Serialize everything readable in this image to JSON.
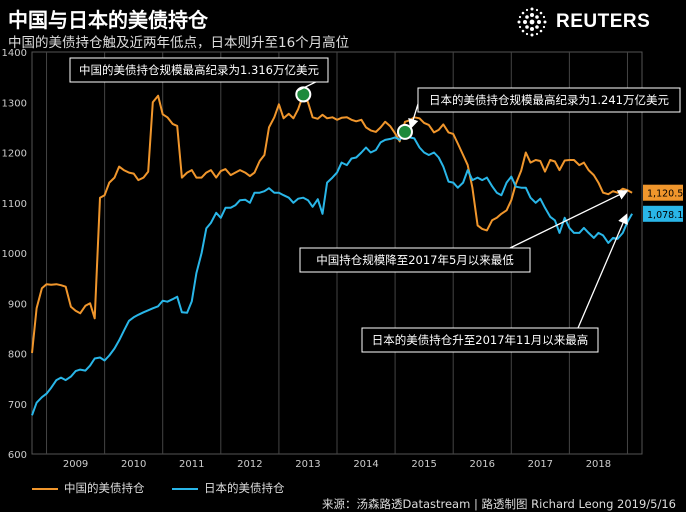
{
  "header": {
    "title": "中国与日本的美债持仓",
    "subtitle": "中国的美债持仓触及近两年低点，日本则升至16个月高位",
    "brand": "REUTERS"
  },
  "legend": {
    "china": "中国的美债持仓",
    "japan": "日本的美债持仓"
  },
  "source": "来源：汤森路透Datastream | 路透制图 Richard Leong 2019/5/16",
  "colors": {
    "china": "#f0962c",
    "japan": "#29b6e8",
    "background": "#000000"
  },
  "chart_data": {
    "type": "line",
    "xlabel": "",
    "ylabel": "",
    "ylim": [
      600,
      1400
    ],
    "yticks": [
      600,
      700,
      800,
      900,
      1000,
      1100,
      1200,
      1300,
      1400
    ],
    "xlim": [
      2008.75,
      2019.25
    ],
    "xticks": [
      {
        "label": "2009",
        "x": 2009
      },
      {
        "label": "2010",
        "x": 2010
      },
      {
        "label": "2011",
        "x": 2011
      },
      {
        "label": "2012",
        "x": 2012
      },
      {
        "label": "2013",
        "x": 2013
      },
      {
        "label": "2014",
        "x": 2014
      },
      {
        "label": "2015",
        "x": 2015
      },
      {
        "label": "2016",
        "x": 2016
      },
      {
        "label": "2017",
        "x": 2017
      },
      {
        "label": "2018",
        "x": 2018
      }
    ],
    "grid": "vertical",
    "series": [
      {
        "name": "中国的美债持仓",
        "color": "#f0962c",
        "end_label": "1,120.5",
        "points": [
          [
            2008.75,
            801
          ],
          [
            2008.83,
            890
          ],
          [
            2008.92,
            930
          ],
          [
            2009.0,
            938
          ],
          [
            2009.08,
            937
          ],
          [
            2009.17,
            938
          ],
          [
            2009.25,
            936
          ],
          [
            2009.33,
            933
          ],
          [
            2009.42,
            893
          ],
          [
            2009.5,
            885
          ],
          [
            2009.58,
            880
          ],
          [
            2009.67,
            895
          ],
          [
            2009.75,
            900
          ],
          [
            2009.83,
            870
          ],
          [
            2009.92,
            1110
          ],
          [
            2010.0,
            1115
          ],
          [
            2010.08,
            1140
          ],
          [
            2010.17,
            1150
          ],
          [
            2010.25,
            1172
          ],
          [
            2010.33,
            1165
          ],
          [
            2010.42,
            1160
          ],
          [
            2010.5,
            1158
          ],
          [
            2010.58,
            1145
          ],
          [
            2010.67,
            1150
          ],
          [
            2010.75,
            1162
          ],
          [
            2010.83,
            1300
          ],
          [
            2010.92,
            1313
          ],
          [
            2011.0,
            1276
          ],
          [
            2011.08,
            1270
          ],
          [
            2011.17,
            1257
          ],
          [
            2011.25,
            1253
          ],
          [
            2011.33,
            1150
          ],
          [
            2011.42,
            1160
          ],
          [
            2011.5,
            1165
          ],
          [
            2011.58,
            1150
          ],
          [
            2011.67,
            1150
          ],
          [
            2011.75,
            1160
          ],
          [
            2011.83,
            1165
          ],
          [
            2011.92,
            1150
          ],
          [
            2012.0,
            1163
          ],
          [
            2012.08,
            1167
          ],
          [
            2012.17,
            1155
          ],
          [
            2012.25,
            1160
          ],
          [
            2012.33,
            1165
          ],
          [
            2012.42,
            1160
          ],
          [
            2012.5,
            1153
          ],
          [
            2012.58,
            1160
          ],
          [
            2012.67,
            1183
          ],
          [
            2012.75,
            1195
          ],
          [
            2012.83,
            1250
          ],
          [
            2012.92,
            1270
          ],
          [
            2013.0,
            1296
          ],
          [
            2013.08,
            1268
          ],
          [
            2013.17,
            1277
          ],
          [
            2013.25,
            1268
          ],
          [
            2013.33,
            1286
          ],
          [
            2013.42,
            1315
          ],
          [
            2013.5,
            1300
          ],
          [
            2013.58,
            1270
          ],
          [
            2013.67,
            1267
          ],
          [
            2013.75,
            1275
          ],
          [
            2013.83,
            1268
          ],
          [
            2013.92,
            1270
          ],
          [
            2014.0,
            1265
          ],
          [
            2014.08,
            1269
          ],
          [
            2014.17,
            1270
          ],
          [
            2014.25,
            1265
          ],
          [
            2014.33,
            1262
          ],
          [
            2014.42,
            1265
          ],
          [
            2014.5,
            1250
          ],
          [
            2014.58,
            1244
          ],
          [
            2014.67,
            1241
          ],
          [
            2014.75,
            1250
          ],
          [
            2014.83,
            1261
          ],
          [
            2014.92,
            1252
          ],
          [
            2015.0,
            1238
          ],
          [
            2015.08,
            1222
          ],
          [
            2015.17,
            1261
          ],
          [
            2015.25,
            1264
          ],
          [
            2015.33,
            1270
          ],
          [
            2015.42,
            1268
          ],
          [
            2015.5,
            1259
          ],
          [
            2015.58,
            1255
          ],
          [
            2015.67,
            1240
          ],
          [
            2015.75,
            1245
          ],
          [
            2015.83,
            1256
          ],
          [
            2015.92,
            1240
          ],
          [
            2016.0,
            1237
          ],
          [
            2016.08,
            1218
          ],
          [
            2016.17,
            1195
          ],
          [
            2016.25,
            1175
          ],
          [
            2016.33,
            1130
          ],
          [
            2016.42,
            1055
          ],
          [
            2016.5,
            1048
          ],
          [
            2016.58,
            1045
          ],
          [
            2016.67,
            1065
          ],
          [
            2016.75,
            1070
          ],
          [
            2016.83,
            1078
          ],
          [
            2016.92,
            1085
          ],
          [
            2017.0,
            1105
          ],
          [
            2017.08,
            1138
          ],
          [
            2017.17,
            1164
          ],
          [
            2017.25,
            1200
          ],
          [
            2017.33,
            1180
          ],
          [
            2017.42,
            1185
          ],
          [
            2017.5,
            1183
          ],
          [
            2017.58,
            1162
          ],
          [
            2017.67,
            1185
          ],
          [
            2017.75,
            1182
          ],
          [
            2017.83,
            1165
          ],
          [
            2017.92,
            1184
          ],
          [
            2018.0,
            1185
          ],
          [
            2018.08,
            1185
          ],
          [
            2018.17,
            1175
          ],
          [
            2018.25,
            1180
          ],
          [
            2018.33,
            1165
          ],
          [
            2018.42,
            1155
          ],
          [
            2018.5,
            1140
          ],
          [
            2018.58,
            1120
          ],
          [
            2018.67,
            1117
          ],
          [
            2018.75,
            1123
          ],
          [
            2018.83,
            1120
          ],
          [
            2018.92,
            1128
          ],
          [
            2019.0,
            1125
          ],
          [
            2019.08,
            1120
          ]
        ]
      },
      {
        "name": "日本的美债持仓",
        "color": "#29b6e8",
        "end_label": "1,078.1",
        "points": [
          [
            2008.75,
            677
          ],
          [
            2008.83,
            702
          ],
          [
            2008.92,
            713
          ],
          [
            2009.0,
            720
          ],
          [
            2009.08,
            732
          ],
          [
            2009.17,
            747
          ],
          [
            2009.25,
            752
          ],
          [
            2009.33,
            747
          ],
          [
            2009.42,
            754
          ],
          [
            2009.5,
            765
          ],
          [
            2009.58,
            768
          ],
          [
            2009.67,
            766
          ],
          [
            2009.75,
            776
          ],
          [
            2009.83,
            790
          ],
          [
            2009.92,
            792
          ],
          [
            2010.0,
            786
          ],
          [
            2010.08,
            796
          ],
          [
            2010.17,
            810
          ],
          [
            2010.25,
            826
          ],
          [
            2010.33,
            845
          ],
          [
            2010.42,
            865
          ],
          [
            2010.5,
            872
          ],
          [
            2010.58,
            877
          ],
          [
            2010.67,
            882
          ],
          [
            2010.75,
            886
          ],
          [
            2010.83,
            890
          ],
          [
            2010.92,
            894
          ],
          [
            2011.0,
            905
          ],
          [
            2011.08,
            903
          ],
          [
            2011.17,
            908
          ],
          [
            2011.25,
            913
          ],
          [
            2011.33,
            882
          ],
          [
            2011.42,
            881
          ],
          [
            2011.5,
            904
          ],
          [
            2011.58,
            960
          ],
          [
            2011.67,
            1000
          ],
          [
            2011.75,
            1049
          ],
          [
            2011.83,
            1060
          ],
          [
            2011.92,
            1080
          ],
          [
            2012.0,
            1070
          ],
          [
            2012.08,
            1090
          ],
          [
            2012.17,
            1090
          ],
          [
            2012.25,
            1095
          ],
          [
            2012.33,
            1105
          ],
          [
            2012.42,
            1106
          ],
          [
            2012.5,
            1100
          ],
          [
            2012.58,
            1120
          ],
          [
            2012.67,
            1120
          ],
          [
            2012.75,
            1123
          ],
          [
            2012.83,
            1129
          ],
          [
            2012.92,
            1120
          ],
          [
            2013.0,
            1120
          ],
          [
            2013.08,
            1115
          ],
          [
            2013.17,
            1110
          ],
          [
            2013.25,
            1100
          ],
          [
            2013.33,
            1108
          ],
          [
            2013.42,
            1110
          ],
          [
            2013.5,
            1105
          ],
          [
            2013.58,
            1092
          ],
          [
            2013.67,
            1107
          ],
          [
            2013.75,
            1078
          ],
          [
            2013.83,
            1140
          ],
          [
            2013.92,
            1150
          ],
          [
            2014.0,
            1160
          ],
          [
            2014.08,
            1180
          ],
          [
            2014.17,
            1175
          ],
          [
            2014.25,
            1188
          ],
          [
            2014.33,
            1190
          ],
          [
            2014.42,
            1200
          ],
          [
            2014.5,
            1210
          ],
          [
            2014.58,
            1200
          ],
          [
            2014.67,
            1205
          ],
          [
            2014.75,
            1220
          ],
          [
            2014.83,
            1225
          ],
          [
            2014.92,
            1227
          ],
          [
            2015.0,
            1230
          ],
          [
            2015.08,
            1225
          ],
          [
            2015.17,
            1241
          ],
          [
            2015.25,
            1230
          ],
          [
            2015.33,
            1228
          ],
          [
            2015.42,
            1210
          ],
          [
            2015.5,
            1200
          ],
          [
            2015.58,
            1195
          ],
          [
            2015.67,
            1200
          ],
          [
            2015.75,
            1190
          ],
          [
            2015.83,
            1172
          ],
          [
            2015.92,
            1142
          ],
          [
            2016.0,
            1140
          ],
          [
            2016.08,
            1130
          ],
          [
            2016.17,
            1140
          ],
          [
            2016.25,
            1165
          ],
          [
            2016.33,
            1145
          ],
          [
            2016.42,
            1150
          ],
          [
            2016.5,
            1145
          ],
          [
            2016.58,
            1150
          ],
          [
            2016.67,
            1133
          ],
          [
            2016.75,
            1120
          ],
          [
            2016.83,
            1115
          ],
          [
            2016.92,
            1140
          ],
          [
            2017.0,
            1152
          ],
          [
            2017.08,
            1132
          ],
          [
            2017.17,
            1130
          ],
          [
            2017.25,
            1130
          ],
          [
            2017.33,
            1110
          ],
          [
            2017.42,
            1100
          ],
          [
            2017.5,
            1108
          ],
          [
            2017.58,
            1090
          ],
          [
            2017.67,
            1072
          ],
          [
            2017.75,
            1065
          ],
          [
            2017.83,
            1040
          ],
          [
            2017.92,
            1070
          ],
          [
            2018.0,
            1050
          ],
          [
            2018.08,
            1040
          ],
          [
            2018.17,
            1040
          ],
          [
            2018.25,
            1050
          ],
          [
            2018.33,
            1040
          ],
          [
            2018.42,
            1030
          ],
          [
            2018.5,
            1040
          ],
          [
            2018.58,
            1035
          ],
          [
            2018.67,
            1020
          ],
          [
            2018.75,
            1030
          ],
          [
            2018.83,
            1028
          ],
          [
            2018.92,
            1040
          ],
          [
            2019.0,
            1062
          ],
          [
            2019.08,
            1078
          ]
        ]
      }
    ],
    "highlights": [
      {
        "series": 0,
        "x": 2013.42,
        "y": 1315.6
      },
      {
        "series": 1,
        "x": 2015.17,
        "y": 1241
      }
    ],
    "annotations": [
      {
        "id": "china-peak",
        "text": "中国的美债持仓规模最高纪录为1.316万亿美元",
        "target_series": 0,
        "target_x": 2013.42,
        "target_y": 1315.6
      },
      {
        "id": "japan-peak",
        "text": "日本的美债持仓规模最高纪录为1.241万亿美元",
        "target_series": 1,
        "target_x": 2015.17,
        "target_y": 1241
      },
      {
        "id": "china-low",
        "text": "中国持仓规模降至2017年5月以来最低",
        "target_series": 0,
        "target_x": 2019.08,
        "target_y": 1120.5
      },
      {
        "id": "japan-high",
        "text": "日本的美债持仓升至2017年11月以来最高",
        "target_series": 1,
        "target_x": 2019.08,
        "target_y": 1078.1
      }
    ]
  }
}
